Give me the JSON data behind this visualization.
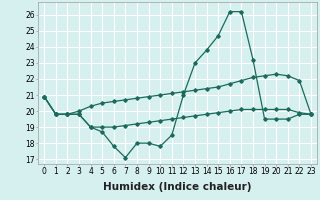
{
  "xlabel": "Humidex (Indice chaleur)",
  "ylabel": "",
  "x_values": [
    0,
    1,
    2,
    3,
    4,
    5,
    6,
    7,
    8,
    9,
    10,
    11,
    12,
    13,
    14,
    15,
    16,
    17,
    18,
    19,
    20,
    21,
    22,
    23
  ],
  "line1_y": [
    20.9,
    19.8,
    19.8,
    19.8,
    19.0,
    18.7,
    17.8,
    17.1,
    18.0,
    18.0,
    17.8,
    18.5,
    21.0,
    23.0,
    23.8,
    24.7,
    26.2,
    26.2,
    23.2,
    19.5,
    19.5,
    19.5,
    19.8,
    19.8
  ],
  "line2_y": [
    20.9,
    19.8,
    19.8,
    20.0,
    20.3,
    20.5,
    20.6,
    20.7,
    20.8,
    20.9,
    21.0,
    21.1,
    21.2,
    21.3,
    21.4,
    21.5,
    21.7,
    21.9,
    22.1,
    22.2,
    22.3,
    22.2,
    21.9,
    19.8
  ],
  "line3_y": [
    20.9,
    19.8,
    19.8,
    19.8,
    19.0,
    19.0,
    19.0,
    19.1,
    19.2,
    19.3,
    19.4,
    19.5,
    19.6,
    19.7,
    19.8,
    19.9,
    20.0,
    20.1,
    20.1,
    20.1,
    20.1,
    20.1,
    19.9,
    19.8
  ],
  "xlim": [
    -0.5,
    23.5
  ],
  "ylim": [
    16.7,
    26.8
  ],
  "yticks": [
    17,
    18,
    19,
    20,
    21,
    22,
    23,
    24,
    25,
    26
  ],
  "xticks": [
    0,
    1,
    2,
    3,
    4,
    5,
    6,
    7,
    8,
    9,
    10,
    11,
    12,
    13,
    14,
    15,
    16,
    17,
    18,
    19,
    20,
    21,
    22,
    23
  ],
  "line_color": "#1a6b5a",
  "bg_color": "#d6f0f0",
  "grid_color": "#ffffff",
  "tick_fontsize": 5.5,
  "label_fontsize": 7.5
}
